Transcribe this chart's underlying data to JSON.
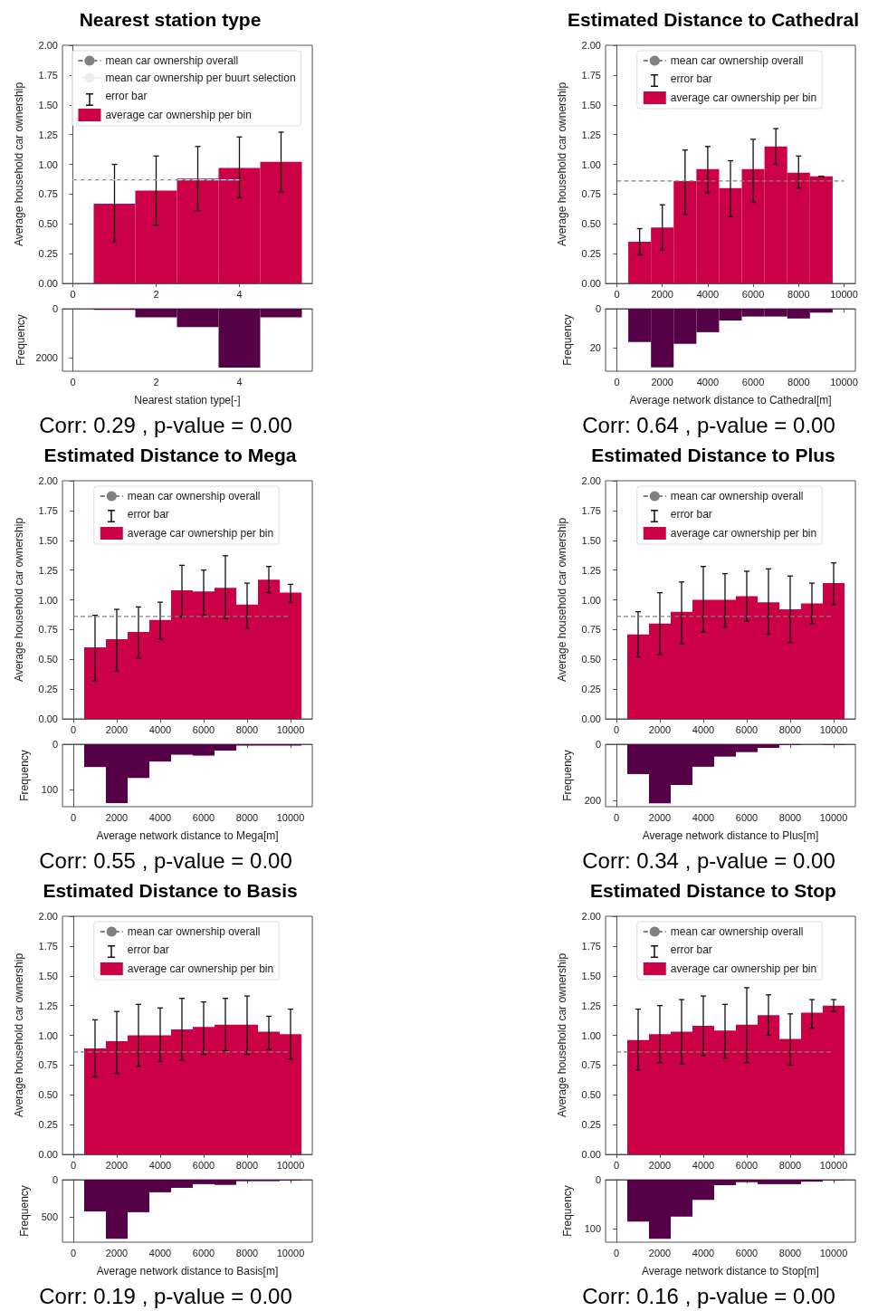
{
  "chart_data": [
    {
      "type": "histogram",
      "title": "Nearest station type",
      "ylabel": "Average household car ownership",
      "bins": [
        0.5,
        1.5,
        2.5,
        3.5,
        4.5,
        5.5
      ],
      "series": [
        {
          "name": "average car ownership per bin",
          "color": "#cc0047",
          "values": [
            0.67,
            0.78,
            0.88,
            0.97,
            1.02
          ],
          "errors": [
            [
              0.35,
              1.0
            ],
            [
              0.49,
              1.07
            ],
            [
              0.61,
              1.15
            ],
            [
              0.72,
              1.23
            ],
            [
              0.77,
              1.27
            ]
          ]
        }
      ],
      "xlim": [
        -0.25,
        5.75
      ],
      "xticks": [
        0,
        2,
        4
      ],
      "ylim": [
        0,
        2
      ],
      "yticks": [
        {
          "value": 0,
          "label": "0.00"
        },
        {
          "value": 0.25,
          "label": "0.25"
        },
        {
          "value": 0.5,
          "label": "0.50"
        },
        {
          "value": 0.75,
          "label": "0.75"
        },
        {
          "value": 1,
          "label": "1.00"
        },
        {
          "value": 1.25,
          "label": "1.25"
        },
        {
          "value": 1.5,
          "label": "1.50"
        },
        {
          "value": 1.75,
          "label": "1.75"
        },
        {
          "value": 2,
          "label": "2.00"
        }
      ],
      "ref_lines": [
        {
          "axis": "y",
          "value": 0.87,
          "label": "mean car ownership overall",
          "color": "#808080",
          "line_style": "dashed"
        },
        {
          "axis": "y",
          "value": 0.87,
          "label": "mean car ownership per buurt selection",
          "color": "#eeeeee",
          "line_style": "dashed"
        }
      ],
      "annotations": [
        "error bar"
      ],
      "legend": "top"
    },
    {
      "type": "histogram",
      "ylabel": "Frequency",
      "xlabel": "Nearest station type[-]",
      "bins": [
        0.5,
        1.5,
        2.5,
        3.5,
        4.5,
        5.5
      ],
      "values": [
        50,
        350,
        750,
        2400,
        350
      ],
      "color": "#560048",
      "xlim": [
        -0.25,
        5.75
      ],
      "xticks": [
        0,
        2,
        4
      ],
      "ylim": [
        2550,
        0
      ],
      "yticks": [
        0,
        2000
      ],
      "annotations": [
        "Corr: 0.29 , p-value = 0.00"
      ]
    },
    {
      "type": "histogram",
      "title": "Estimated Distance to Cathedral",
      "ylabel": "Average household car ownership",
      "bins": [
        500,
        1500,
        2500,
        3500,
        4500,
        5500,
        6500,
        7500,
        8500,
        9500
      ],
      "series": [
        {
          "name": "average car ownership per bin",
          "color": "#cc0047",
          "values": [
            0.35,
            0.47,
            0.86,
            0.96,
            0.8,
            0.96,
            1.15,
            0.93,
            0.9
          ],
          "errors": [
            [
              0.24,
              0.46
            ],
            [
              0.28,
              0.66
            ],
            [
              0.58,
              1.12
            ],
            [
              0.76,
              1.15
            ],
            [
              0.56,
              1.03
            ],
            [
              0.68,
              1.21
            ],
            [
              1.0,
              1.3
            ],
            [
              0.8,
              1.07
            ],
            0
          ]
        }
      ],
      "xlim": [
        -500,
        10500
      ],
      "xticks": [
        0,
        2000,
        4000,
        6000,
        8000,
        10000
      ],
      "ylim": [
        0,
        2
      ],
      "yticks": [
        {
          "value": 0,
          "label": "0.00"
        },
        {
          "value": 0.25,
          "label": "0.25"
        },
        {
          "value": 0.5,
          "label": "0.50"
        },
        {
          "value": 0.75,
          "label": "0.75"
        },
        {
          "value": 1,
          "label": "1.00"
        },
        {
          "value": 1.25,
          "label": "1.25"
        },
        {
          "value": 1.5,
          "label": "1.50"
        },
        {
          "value": 1.75,
          "label": "1.75"
        },
        {
          "value": 2,
          "label": "2.00"
        }
      ],
      "ref_lines": [
        {
          "axis": "y",
          "value": 0.86,
          "label": "mean car ownership overall",
          "color": "#808080",
          "line_style": "dashed"
        }
      ],
      "annotations": [
        "error bar"
      ],
      "legend": "top"
    },
    {
      "type": "histogram",
      "ylabel": "Frequency",
      "xlabel": "Average network distance to Cathedral[m]",
      "bins": [
        500,
        1500,
        2500,
        3500,
        4500,
        5500,
        6500,
        7500,
        8500,
        9500
      ],
      "values": [
        17,
        30,
        18,
        12,
        6,
        4,
        4,
        5,
        2
      ],
      "color": "#560048",
      "xlim": [
        -500,
        10500
      ],
      "xticks": [
        0,
        2000,
        4000,
        6000,
        8000,
        10000
      ],
      "ylim": [
        32,
        0
      ],
      "yticks": [
        0,
        20
      ],
      "annotations": [
        "Corr: 0.64 , p-value = 0.00"
      ]
    },
    {
      "type": "histogram",
      "title": "Estimated Distance to Mega",
      "ylabel": "Average household car ownership",
      "bins": [
        500,
        1500,
        2500,
        3500,
        4500,
        5500,
        6500,
        7500,
        8500,
        9500,
        10500
      ],
      "series": [
        {
          "name": "average car ownership per bin",
          "color": "#cc0047",
          "values": [
            0.6,
            0.67,
            0.73,
            0.83,
            1.08,
            1.07,
            1.1,
            0.96,
            1.17,
            1.06
          ],
          "errors": [
            [
              0.32,
              0.87
            ],
            [
              0.4,
              0.92
            ],
            [
              0.51,
              0.94
            ],
            [
              0.67,
              0.98
            ],
            [
              0.86,
              1.29
            ],
            [
              0.87,
              1.25
            ],
            [
              0.84,
              1.37
            ],
            [
              0.76,
              1.14
            ],
            [
              1.06,
              1.28
            ],
            [
              0.98,
              1.13
            ]
          ]
        }
      ],
      "xlim": [
        -500,
        11000
      ],
      "xticks": [
        0,
        2000,
        4000,
        6000,
        8000,
        10000
      ],
      "ylim": [
        0,
        2
      ],
      "yticks": [
        {
          "value": 0,
          "label": "0.00"
        },
        {
          "value": 0.25,
          "label": "0.25"
        },
        {
          "value": 0.5,
          "label": "0.50"
        },
        {
          "value": 0.75,
          "label": "0.75"
        },
        {
          "value": 1,
          "label": "1.00"
        },
        {
          "value": 1.25,
          "label": "1.25"
        },
        {
          "value": 1.5,
          "label": "1.50"
        },
        {
          "value": 1.75,
          "label": "1.75"
        },
        {
          "value": 2,
          "label": "2.00"
        }
      ],
      "ref_lines": [
        {
          "axis": "y",
          "value": 0.86,
          "label": "mean car ownership overall",
          "color": "#808080",
          "line_style": "dashed"
        }
      ],
      "annotations": [
        "error bar"
      ],
      "legend": "top"
    },
    {
      "type": "histogram",
      "ylabel": "Frequency",
      "xlabel": "Average network distance to Mega[m]",
      "bins": [
        500,
        1500,
        2500,
        3500,
        4500,
        5500,
        6500,
        7500,
        8500,
        9500,
        10500
      ],
      "values": [
        50,
        129,
        74,
        38,
        23,
        25,
        14,
        3,
        3,
        3
      ],
      "color": "#560048",
      "xlim": [
        -500,
        11000
      ],
      "xticks": [
        0,
        2000,
        4000,
        6000,
        8000,
        10000
      ],
      "ylim": [
        137,
        0
      ],
      "yticks": [
        0,
        100
      ],
      "annotations": [
        "Corr: 0.55 , p-value = 0.00"
      ]
    },
    {
      "type": "histogram",
      "title": "Estimated Distance to Plus",
      "ylabel": "Average household car ownership",
      "bins": [
        500,
        1500,
        2500,
        3500,
        4500,
        5500,
        6500,
        7500,
        8500,
        9500,
        10500
      ],
      "series": [
        {
          "name": "average car ownership per bin",
          "color": "#cc0047",
          "values": [
            0.71,
            0.8,
            0.9,
            1.0,
            1.0,
            1.03,
            0.98,
            0.92,
            0.97,
            1.14
          ],
          "errors": [
            [
              0.52,
              0.9
            ],
            [
              0.54,
              1.06
            ],
            [
              0.63,
              1.15
            ],
            [
              0.73,
              1.28
            ],
            [
              0.77,
              1.22
            ],
            [
              0.82,
              1.24
            ],
            [
              0.71,
              1.26
            ],
            [
              0.64,
              1.2
            ],
            [
              0.8,
              1.14
            ],
            [
              0.96,
              1.31
            ]
          ]
        }
      ],
      "xlim": [
        -500,
        11000
      ],
      "xticks": [
        0,
        2000,
        4000,
        6000,
        8000,
        10000
      ],
      "ylim": [
        0,
        2
      ],
      "yticks": [
        {
          "value": 0,
          "label": "0.00"
        },
        {
          "value": 0.25,
          "label": "0.25"
        },
        {
          "value": 0.5,
          "label": "0.50"
        },
        {
          "value": 0.75,
          "label": "0.75"
        },
        {
          "value": 1,
          "label": "1.00"
        },
        {
          "value": 1.25,
          "label": "1.25"
        },
        {
          "value": 1.5,
          "label": "1.50"
        },
        {
          "value": 1.75,
          "label": "1.75"
        },
        {
          "value": 2,
          "label": "2.00"
        }
      ],
      "ref_lines": [
        {
          "axis": "y",
          "value": 0.86,
          "label": "mean car ownership overall",
          "color": "#808080",
          "line_style": "dashed"
        }
      ],
      "annotations": [
        "error bar"
      ],
      "legend": "top"
    },
    {
      "type": "histogram",
      "ylabel": "Frequency",
      "xlabel": "Average network distance to Plus[m]",
      "bins": [
        500,
        1500,
        2500,
        3500,
        4500,
        5500,
        6500,
        7500,
        8500,
        9500,
        10500
      ],
      "values": [
        106,
        210,
        145,
        80,
        44,
        28,
        13,
        3,
        0,
        2
      ],
      "color": "#560048",
      "xlim": [
        -500,
        11000
      ],
      "xticks": [
        0,
        2000,
        4000,
        6000,
        8000,
        10000
      ],
      "ylim": [
        222,
        0
      ],
      "yticks": [
        0,
        200
      ],
      "annotations": [
        "Corr: 0.34 , p-value = 0.00"
      ]
    },
    {
      "type": "histogram",
      "title": "Estimated Distance to Basis",
      "ylabel": "Average household car ownership",
      "bins": [
        500,
        1500,
        2500,
        3500,
        4500,
        5500,
        6500,
        7500,
        8500,
        9500,
        10500
      ],
      "series": [
        {
          "name": "average car ownership per bin",
          "color": "#cc0047",
          "values": [
            0.89,
            0.95,
            1.0,
            1.0,
            1.05,
            1.07,
            1.09,
            1.09,
            1.03,
            1.01
          ],
          "errors": [
            [
              0.65,
              1.13
            ],
            [
              0.68,
              1.2
            ],
            [
              0.74,
              1.26
            ],
            [
              0.78,
              1.23
            ],
            [
              0.79,
              1.31
            ],
            [
              0.84,
              1.28
            ],
            [
              0.87,
              1.31
            ],
            [
              0.84,
              1.33
            ],
            [
              0.88,
              1.16
            ],
            [
              0.8,
              1.22
            ]
          ]
        }
      ],
      "xlim": [
        -500,
        11000
      ],
      "xticks": [
        0,
        2000,
        4000,
        6000,
        8000,
        10000
      ],
      "ylim": [
        0,
        2
      ],
      "yticks": [
        {
          "value": 0,
          "label": "0.00"
        },
        {
          "value": 0.25,
          "label": "0.25"
        },
        {
          "value": 0.5,
          "label": "0.50"
        },
        {
          "value": 0.75,
          "label": "0.75"
        },
        {
          "value": 1,
          "label": "1.00"
        },
        {
          "value": 1.25,
          "label": "1.25"
        },
        {
          "value": 1.5,
          "label": "1.50"
        },
        {
          "value": 1.75,
          "label": "1.75"
        },
        {
          "value": 2,
          "label": "2.00"
        }
      ],
      "ref_lines": [
        {
          "axis": "y",
          "value": 0.86,
          "label": "mean car ownership overall",
          "color": "#808080",
          "line_style": "dashed"
        }
      ],
      "annotations": [
        "error bar"
      ],
      "legend": "top"
    },
    {
      "type": "histogram",
      "ylabel": "Frequency",
      "xlabel": "Average network distance to Basis[m]",
      "bins": [
        500,
        1500,
        2500,
        3500,
        4500,
        5500,
        6500,
        7500,
        8500,
        9500,
        10500
      ],
      "values": [
        430,
        800,
        440,
        170,
        110,
        60,
        70,
        20,
        20,
        10
      ],
      "color": "#560048",
      "xlim": [
        -500,
        11000
      ],
      "xticks": [
        0,
        2000,
        4000,
        6000,
        8000,
        10000
      ],
      "ylim": [
        846,
        0
      ],
      "yticks": [
        0,
        500
      ],
      "annotations": [
        "Corr: 0.19 , p-value = 0.00"
      ]
    },
    {
      "type": "histogram",
      "title": "Estimated Distance to Stop",
      "ylabel": "Average household car ownership",
      "bins": [
        500,
        1500,
        2500,
        3500,
        4500,
        5500,
        6500,
        7500,
        8500,
        9500,
        10500
      ],
      "series": [
        {
          "name": "average car ownership per bin",
          "color": "#cc0047",
          "values": [
            0.96,
            1.01,
            1.03,
            1.08,
            1.04,
            1.09,
            1.17,
            0.97,
            1.19,
            1.25
          ],
          "errors": [
            [
              0.71,
              1.22
            ],
            [
              0.77,
              1.25
            ],
            [
              0.76,
              1.3
            ],
            [
              0.83,
              1.33
            ],
            [
              0.81,
              1.26
            ],
            [
              0.77,
              1.4
            ],
            [
              1.0,
              1.34
            ],
            [
              0.75,
              1.18
            ],
            [
              1.06,
              1.3
            ],
            [
              1.2,
              1.3
            ]
          ]
        }
      ],
      "xlim": [
        -500,
        11000
      ],
      "xticks": [
        0,
        2000,
        4000,
        6000,
        8000,
        10000
      ],
      "ylim": [
        0,
        2
      ],
      "yticks": [
        {
          "value": 0,
          "label": "0.00"
        },
        {
          "value": 0.25,
          "label": "0.25"
        },
        {
          "value": 0.5,
          "label": "0.50"
        },
        {
          "value": 0.75,
          "label": "0.75"
        },
        {
          "value": 1,
          "label": "1.00"
        },
        {
          "value": 1.25,
          "label": "1.25"
        },
        {
          "value": 1.5,
          "label": "1.50"
        },
        {
          "value": 1.75,
          "label": "1.75"
        },
        {
          "value": 2,
          "label": "2.00"
        }
      ],
      "ref_lines": [
        {
          "axis": "y",
          "value": 0.86,
          "label": "mean car ownership overall",
          "color": "#808080",
          "line_style": "dashed"
        }
      ],
      "annotations": [
        "error bar"
      ],
      "legend": "top"
    },
    {
      "type": "histogram",
      "ylabel": "Frequency",
      "xlabel": "Average network distance to Stop[m]",
      "bins": [
        500,
        1500,
        2500,
        3500,
        4500,
        5500,
        6500,
        7500,
        8500,
        9500,
        10500
      ],
      "values": [
        85,
        120,
        75,
        41,
        11,
        5,
        9,
        9,
        4,
        1
      ],
      "color": "#560048",
      "xlim": [
        -500,
        11000
      ],
      "xticks": [
        0,
        2000,
        4000,
        6000,
        8000,
        10000
      ],
      "ylim": [
        127,
        0
      ],
      "yticks": [
        0,
        100
      ],
      "annotations": [
        "Corr: 0.16 , p-value = 0.00"
      ]
    }
  ]
}
